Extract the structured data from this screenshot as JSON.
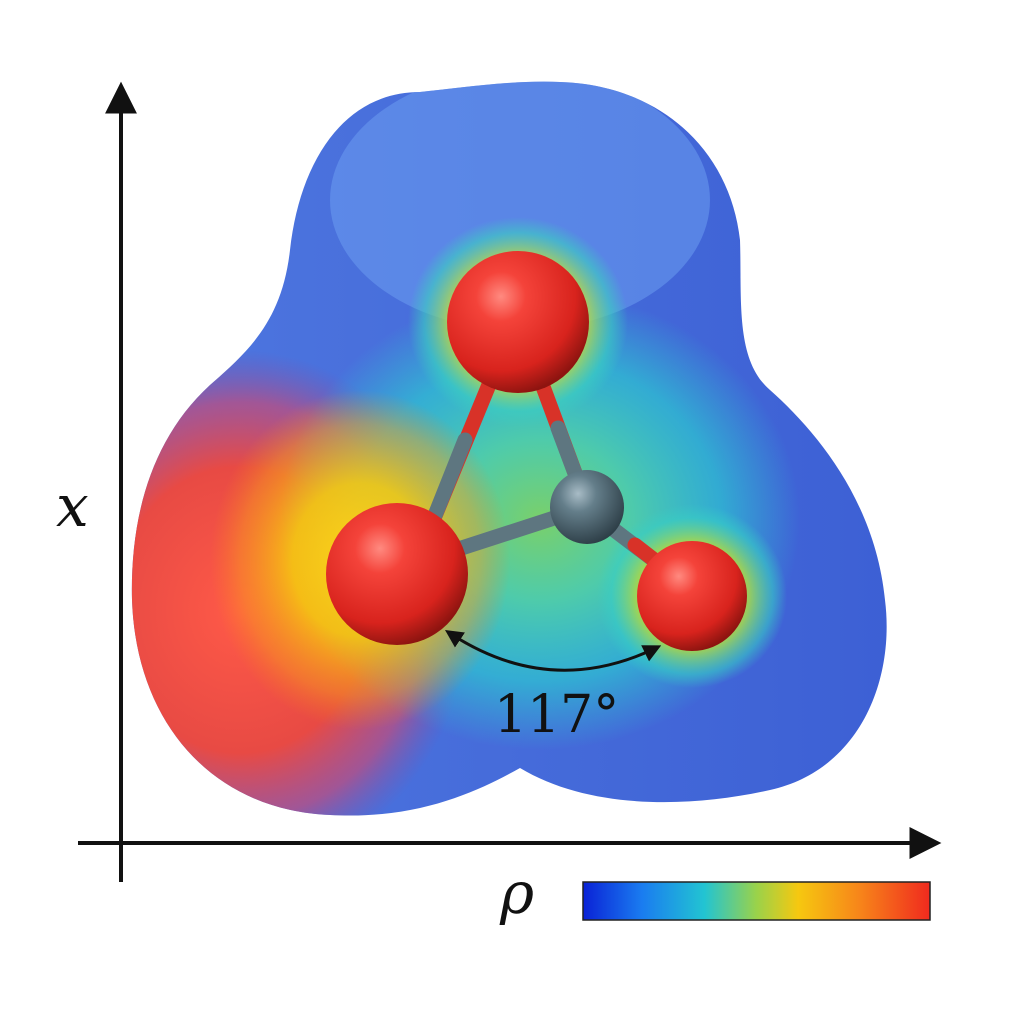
{
  "axes": {
    "y_label": "x",
    "x_label": ""
  },
  "annotations": {
    "angle": "117°"
  },
  "colorbar": {
    "label": "ρ",
    "colors": [
      "#0a22d6",
      "#1a7cf0",
      "#22c4d2",
      "#9ad24a",
      "#f6c810",
      "#f7841a",
      "#f02a1e"
    ]
  },
  "molecule": {
    "atoms": [
      {
        "element": "O",
        "role": "top-oxygen",
        "color": "#e8322b"
      },
      {
        "element": "O",
        "role": "left-oxygen",
        "color": "#e8322b"
      },
      {
        "element": "C",
        "role": "central-carbon",
        "color": "#5b7480"
      },
      {
        "element": "O",
        "role": "right-oxygen",
        "color": "#e8322b"
      }
    ]
  },
  "surface": {
    "colors": {
      "negative": "#f2463a",
      "neutral": "#2ad0d0",
      "positive": "#4a68d8"
    }
  }
}
